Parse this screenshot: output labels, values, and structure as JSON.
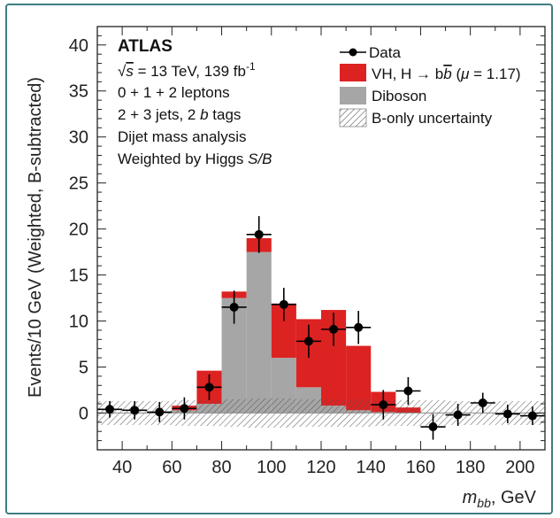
{
  "chart_data": {
    "type": "bar",
    "stacked_histogram": true,
    "xlabel": "m_bb, GeV",
    "xlabel_parts": {
      "var": "m",
      "sub": "bb",
      "unit": ", GeV"
    },
    "ylabel": "Events/10 GeV (Weighted, B-subtracted)",
    "xlim": [
      30,
      210
    ],
    "ylim": [
      -4,
      42
    ],
    "xticks": [
      40,
      60,
      80,
      100,
      120,
      140,
      160,
      180,
      200
    ],
    "yticks": [
      0,
      5,
      10,
      15,
      20,
      25,
      30,
      35,
      40
    ],
    "bin_edges": [
      30,
      40,
      50,
      60,
      70,
      80,
      90,
      100,
      110,
      120,
      130,
      140,
      150,
      160,
      170,
      180,
      190,
      200,
      210
    ],
    "series": [
      {
        "name": "Diboson",
        "color": "#a6a6a6",
        "values": [
          0,
          0,
          0,
          0.3,
          1.0,
          12.5,
          17.5,
          6.0,
          2.8,
          0.8,
          0.3,
          0.1,
          0,
          0,
          0,
          0,
          0,
          0
        ]
      },
      {
        "name": "VH, H → bb̄ (μ = 1.17)",
        "color": "#dd2222",
        "values": [
          0,
          0,
          0,
          0.5,
          3.6,
          0.7,
          1.5,
          5.9,
          7.4,
          10.4,
          7.0,
          2.2,
          0.6,
          0,
          0,
          0,
          0,
          0
        ]
      }
    ],
    "data_points": {
      "name": "Data",
      "x": [
        35,
        45,
        55,
        65,
        75,
        85,
        95,
        105,
        115,
        125,
        135,
        145,
        155,
        165,
        175,
        185,
        195,
        205
      ],
      "y": [
        0.4,
        0.3,
        0.1,
        0.5,
        2.8,
        11.5,
        19.4,
        11.8,
        7.8,
        9.1,
        9.3,
        0.9,
        2.4,
        -1.5,
        -0.2,
        1.1,
        -0.1,
        -0.3
      ],
      "yerr": [
        0.9,
        1.0,
        1.1,
        1.2,
        1.4,
        1.8,
        2.0,
        1.8,
        1.8,
        1.8,
        1.8,
        1.6,
        1.5,
        1.4,
        1.2,
        1.1,
        1.0,
        1.0
      ]
    },
    "uncertainty_band": {
      "name": "B-only uncertainty",
      "half_width": [
        1.3,
        1.3,
        1.3,
        1.4,
        1.4,
        1.5,
        1.6,
        1.6,
        1.5,
        1.5,
        1.5,
        1.4,
        1.4,
        1.4,
        1.3,
        1.3,
        1.3,
        1.3
      ]
    },
    "annotations": {
      "experiment": "ATLAS",
      "sqrt_s": "s",
      "energy_lumi": " = 13 TeV, 139 fb",
      "lumi_exp": "-1",
      "leptons": "0 + 1 + 2 leptons",
      "jets_pre": "2 + 3 jets, 2 ",
      "jets_b": "b",
      "jets_post": " tags",
      "analysis": "Dijet mass analysis",
      "weight_pre": "Weighted by Higgs ",
      "weight_sb": "S/B"
    },
    "legend": {
      "placement": "top-right",
      "entries": [
        {
          "label": "Data"
        },
        {
          "label_pre": "VH, H → b",
          "label_bbar": "b",
          "label_mid": " (",
          "label_mu": "μ",
          "label_post": " = 1.17)"
        },
        {
          "label": "Diboson"
        },
        {
          "label": "B-only uncertainty"
        }
      ]
    }
  }
}
